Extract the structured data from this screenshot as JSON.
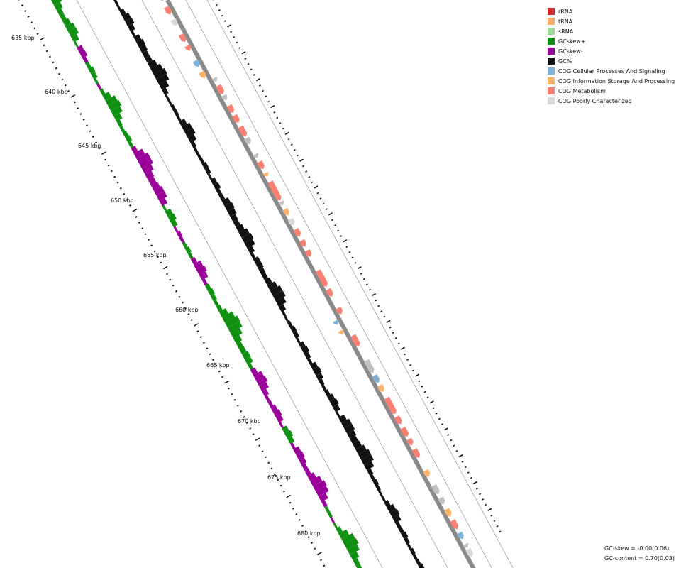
{
  "tick_labels": [
    "635 kbp",
    "640 kbp",
    "645 kbp",
    "650 kbp",
    "655 kbp",
    "660 kbp",
    "665 kbp",
    "670 kbp",
    "675 kbp",
    "680 kbp"
  ],
  "legend": [
    {
      "label": "rRNA",
      "color": "#d62728"
    },
    {
      "label": "tRNA",
      "color": "#fdae6b"
    },
    {
      "label": "sRNA",
      "color": "#a1d99b"
    },
    {
      "label": "GCskew+",
      "color": "#109010"
    },
    {
      "label": "GCskew-",
      "color": "#990099"
    },
    {
      "label": "GC%",
      "color": "#111111"
    },
    {
      "label": "COG Cellular Processes And Signaling",
      "color": "#7fb2d6"
    },
    {
      "label": "COG Information Storage And Processing",
      "color": "#fdb36b"
    },
    {
      "label": "COG Metabolism",
      "color": "#f98073"
    },
    {
      "label": "COG Poorly Characterized",
      "color": "#d9d9d9"
    }
  ],
  "stats": {
    "gc_skew": "GC-skew = -0.00(0.06)",
    "gc_content": "GC-content = 0.70(0.03)"
  },
  "colors": {
    "backbone": "#8a8a8a",
    "rings": "#a0a0a0",
    "hypothetical": "#c0c0c0"
  }
}
